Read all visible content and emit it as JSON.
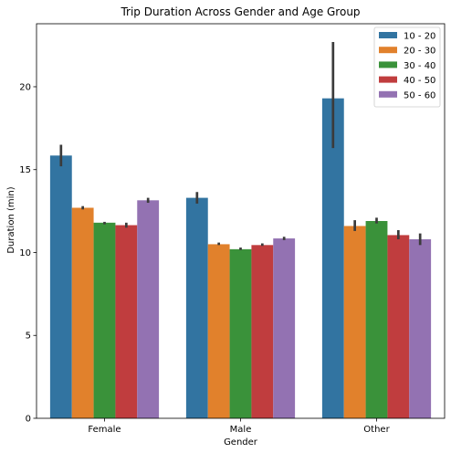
{
  "chart_data": {
    "type": "bar",
    "title": "Trip Duration Across Gender and Age Group",
    "xlabel": "Gender",
    "ylabel": "Duration (min)",
    "categories": [
      "Female",
      "Male",
      "Other"
    ],
    "ylim": [
      0,
      23.8
    ],
    "yticks": [
      0,
      5,
      10,
      15,
      20
    ],
    "grid": false,
    "legend_position": "top-right",
    "error_bars": true,
    "series": [
      {
        "name": "10 - 20",
        "color": "#3274a1",
        "values": [
          15.85,
          13.3,
          19.3
        ],
        "errors": [
          [
            15.2,
            16.5
          ],
          [
            12.95,
            13.65
          ],
          [
            16.3,
            22.7
          ]
        ]
      },
      {
        "name": "20 - 30",
        "color": "#e1812c",
        "values": [
          12.7,
          10.5,
          11.6
        ],
        "errors": [
          [
            12.6,
            12.8
          ],
          [
            10.45,
            10.6
          ],
          [
            11.3,
            11.95
          ]
        ]
      },
      {
        "name": "30 - 40",
        "color": "#3a923a",
        "values": [
          11.8,
          10.2,
          11.9
        ],
        "errors": [
          [
            11.7,
            11.85
          ],
          [
            10.15,
            10.3
          ],
          [
            11.75,
            12.1
          ]
        ]
      },
      {
        "name": "40 - 50",
        "color": "#c03d3e",
        "values": [
          11.65,
          10.45,
          11.05
        ],
        "errors": [
          [
            11.5,
            11.8
          ],
          [
            10.4,
            10.55
          ],
          [
            10.8,
            11.35
          ]
        ]
      },
      {
        "name": "50 - 60",
        "color": "#9372b2",
        "values": [
          13.15,
          10.85,
          10.8
        ],
        "errors": [
          [
            13.0,
            13.3
          ],
          [
            10.75,
            10.95
          ],
          [
            10.45,
            11.15
          ]
        ]
      }
    ]
  }
}
